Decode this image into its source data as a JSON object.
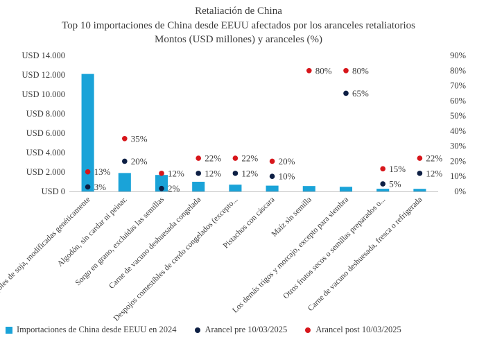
{
  "chart_data": {
    "type": "bar",
    "title": "Retaliación de China",
    "subtitle": "Top 10 importaciones de China desde EEUU afectados por los aranceles retaliatorios",
    "subtitle2": "Montos (USD millones) y aranceles (%)",
    "categories": [
      "Frijoles de soja, modificadas genéticamente",
      "Algodón, sin cardar ni peinar.",
      "Sorgo en grano, excluidas las semillas",
      "Carne de vacuno deshuesada congelada",
      "Despojos comestibles de cerdo congelados (excepto...",
      "Pistachos con cáscara",
      "Maíz sin semilla",
      "Los demás trigos y morcajo, excepto para siembra",
      "Otros frutos secos o semillas preparados o...",
      "Carne de vacuno deshuesada, fresca o refrigerada"
    ],
    "series": [
      {
        "name": "Importaciones de China desde EEUU en 2024",
        "type": "bar",
        "axis": "left",
        "color": "#1aa3d8",
        "values": [
          12100,
          1900,
          1700,
          1000,
          700,
          600,
          560,
          480,
          280,
          270
        ]
      },
      {
        "name": "Arancel pre 10/03/2025",
        "type": "scatter",
        "axis": "right",
        "color": "#0d1f44",
        "values": [
          3,
          20,
          2,
          12,
          12,
          10,
          null,
          65,
          5,
          12
        ],
        "labels": [
          "3%",
          "20%",
          "2%",
          "12%",
          "12%",
          "10%",
          null,
          "65%",
          "5%",
          "12%"
        ]
      },
      {
        "name": "Arancel post 10/03/2025",
        "type": "scatter",
        "axis": "right",
        "color": "#d7161b",
        "values": [
          13,
          35,
          12,
          22,
          22,
          20,
          80,
          80,
          15,
          22
        ],
        "labels": [
          "13%",
          "35%",
          "12%",
          "22%",
          "22%",
          "20%",
          "80%",
          "80%",
          "15%",
          "22%"
        ]
      }
    ],
    "y_left": {
      "ylim": [
        0,
        14000
      ],
      "ticks": [
        0,
        2000,
        4000,
        6000,
        8000,
        10000,
        12000,
        14000
      ],
      "tick_labels": [
        "USD 0",
        "USD 2.000",
        "USD 4.000",
        "USD 6.000",
        "USD 8.000",
        "USD 10.000",
        "USD 12.000",
        "USD 14.000"
      ]
    },
    "y_right": {
      "ylim": [
        0,
        90
      ],
      "ticks": [
        0,
        10,
        20,
        30,
        40,
        50,
        60,
        70,
        80,
        90
      ],
      "tick_labels": [
        "0%",
        "10%",
        "20%",
        "30%",
        "40%",
        "50%",
        "60%",
        "70%",
        "80%",
        "90%"
      ]
    },
    "grid": false,
    "legend_position": "bottom"
  }
}
